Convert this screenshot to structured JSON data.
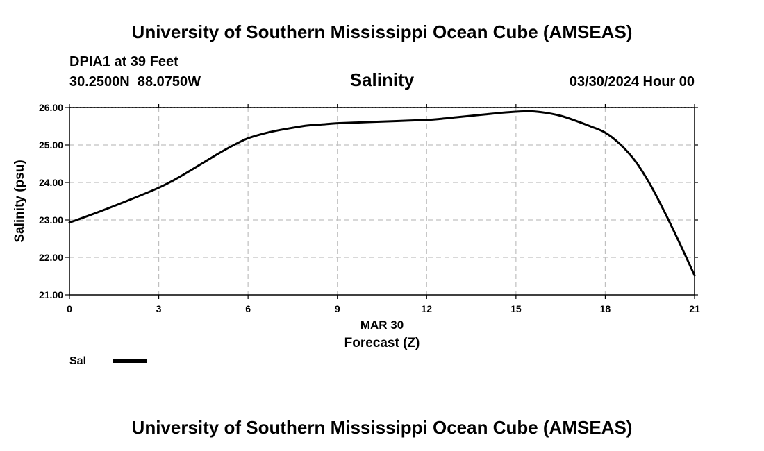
{
  "header": {
    "title": "University of Southern Mississippi Ocean Cube (AMSEAS)",
    "station": "DPIA1 at 39 Feet",
    "coords": "30.2500N  88.0750W",
    "datetime": "03/30/2024 Hour 00"
  },
  "footer": {
    "title": "University of Southern Mississippi Ocean Cube (AMSEAS)"
  },
  "colors": {
    "line": "#000000",
    "grid": "#c0c0c0",
    "frame": "#000000"
  },
  "chart_data": {
    "type": "line",
    "title": "Salinity",
    "xlabel": "Forecast (Z)",
    "ylabel": "Salinity (psu)",
    "date_label": "MAR 30",
    "xlim": [
      0,
      21
    ],
    "ylim": [
      21,
      26
    ],
    "x_ticks": [
      0,
      3,
      6,
      9,
      12,
      15,
      18,
      21
    ],
    "x_tick_labels": [
      "0",
      "3",
      "6",
      "9",
      "12",
      "15",
      "18",
      "21"
    ],
    "y_ticks": [
      21,
      22,
      23,
      24,
      25,
      26
    ],
    "y_tick_labels": [
      "21.00",
      "22.00",
      "23.00",
      "24.00",
      "25.00",
      "26.00"
    ],
    "grid": true,
    "legend": {
      "placement": "bottom-left",
      "entries": [
        {
          "label": "Sal"
        }
      ]
    },
    "series": [
      {
        "name": "Sal",
        "x": [
          0,
          1,
          2,
          3,
          3.5,
          4,
          4.5,
          5,
          5.5,
          6,
          6.5,
          7,
          7.5,
          8,
          8.5,
          9,
          10,
          11,
          12,
          12.5,
          13,
          13.5,
          14,
          14.5,
          15,
          15.5,
          16,
          16.5,
          17,
          17.5,
          18,
          18.5,
          19,
          19.5,
          20,
          20.5,
          21
        ],
        "values": [
          22.93,
          23.22,
          23.53,
          23.86,
          24.06,
          24.29,
          24.53,
          24.77,
          24.99,
          25.18,
          25.3,
          25.39,
          25.46,
          25.52,
          25.55,
          25.58,
          25.61,
          25.64,
          25.67,
          25.7,
          25.74,
          25.78,
          25.82,
          25.86,
          25.89,
          25.9,
          25.86,
          25.78,
          25.65,
          25.5,
          25.33,
          25.02,
          24.58,
          23.96,
          23.2,
          22.38,
          21.52
        ]
      }
    ]
  }
}
